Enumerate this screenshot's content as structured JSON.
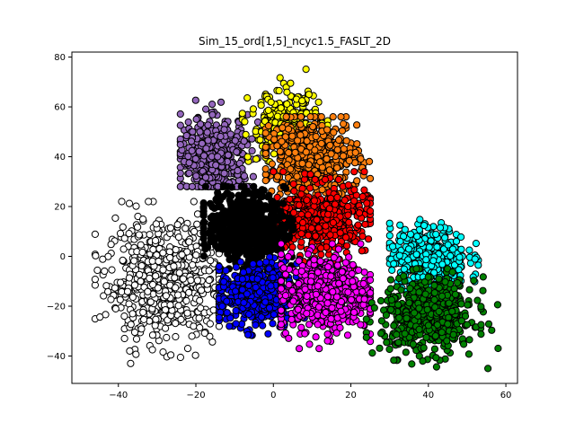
{
  "chart_data": {
    "type": "scatter",
    "title": "Sim_15_ord[1,5]_ncyc1.5_FASLT_2D",
    "xlabel": "",
    "ylabel": "",
    "xlim": [
      -52,
      63
    ],
    "ylim": [
      -51,
      82
    ],
    "xticks": [
      -40,
      -20,
      0,
      20,
      40,
      60
    ],
    "yticks": [
      -40,
      -20,
      0,
      20,
      40,
      60,
      80
    ],
    "grid": false,
    "legend": "none",
    "marker_edge_color": "#000000",
    "series": [
      {
        "color": "#ffffff",
        "center": [
          -28,
          -10
        ],
        "spread": [
          7.5,
          11.5
        ],
        "count": 700,
        "range_x": [
          -46,
          -14
        ],
        "range_y": [
          -43,
          22
        ]
      },
      {
        "color": "#9467bd",
        "center": [
          -15,
          40
        ],
        "spread": [
          4.5,
          8
        ],
        "count": 450,
        "range_x": [
          -24,
          -4
        ],
        "range_y": [
          28,
          68
        ]
      },
      {
        "color": "#ffff00",
        "center": [
          3,
          52
        ],
        "spread": [
          4.5,
          7
        ],
        "count": 280,
        "range_x": [
          -8,
          14
        ],
        "range_y": [
          36,
          76
        ]
      },
      {
        "color": "#ff7f0e",
        "center": [
          10,
          40
        ],
        "spread": [
          6,
          7.5
        ],
        "count": 500,
        "range_x": [
          -2,
          25
        ],
        "range_y": [
          22,
          56
        ]
      },
      {
        "color": "#ff0000",
        "center": [
          12,
          15
        ],
        "spread": [
          6,
          7
        ],
        "count": 500,
        "range_x": [
          0,
          25
        ],
        "range_y": [
          -5,
          34
        ]
      },
      {
        "color": "#000000",
        "center": [
          -7,
          12
        ],
        "spread": [
          5,
          7
        ],
        "count": 600,
        "range_x": [
          -18,
          5
        ],
        "range_y": [
          -5,
          28
        ]
      },
      {
        "color": "#0000ff",
        "center": [
          -4,
          -16
        ],
        "spread": [
          5,
          6.5
        ],
        "count": 450,
        "range_x": [
          -14,
          8
        ],
        "range_y": [
          -34,
          0
        ]
      },
      {
        "color": "#ff00ff",
        "center": [
          13,
          -15
        ],
        "spread": [
          6,
          7.5
        ],
        "count": 600,
        "range_x": [
          2,
          25
        ],
        "range_y": [
          -37,
          5
        ]
      },
      {
        "color": "#00ffff",
        "center": [
          40,
          0
        ],
        "spread": [
          5,
          6
        ],
        "count": 380,
        "range_x": [
          30,
          55
        ],
        "range_y": [
          -18,
          20
        ]
      },
      {
        "color": "#008000",
        "center": [
          40,
          -24
        ],
        "spread": [
          6,
          7.5
        ],
        "count": 550,
        "range_x": [
          24,
          58
        ],
        "range_y": [
          -45,
          -5
        ]
      }
    ]
  }
}
